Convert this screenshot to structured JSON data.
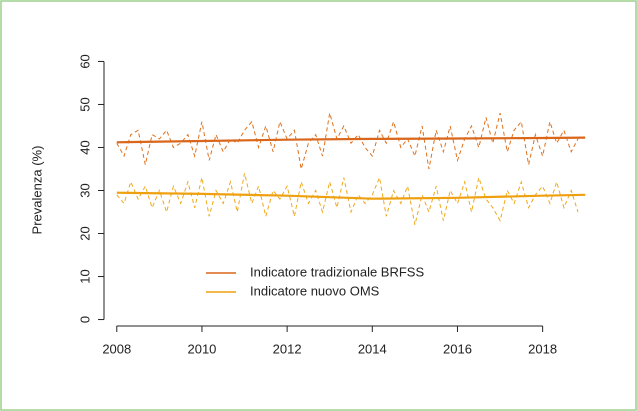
{
  "chart_data": {
    "type": "line",
    "ylabel": "Prevalenza (%)",
    "x": [
      2008,
      2008.17,
      2008.33,
      2008.5,
      2008.67,
      2008.83,
      2009,
      2009.17,
      2009.33,
      2009.5,
      2009.67,
      2009.83,
      2010,
      2010.17,
      2010.33,
      2010.5,
      2010.67,
      2010.83,
      2011,
      2011.17,
      2011.33,
      2011.5,
      2011.67,
      2011.83,
      2012,
      2012.17,
      2012.33,
      2012.5,
      2012.67,
      2012.83,
      2013,
      2013.17,
      2013.33,
      2013.5,
      2013.67,
      2013.83,
      2014,
      2014.17,
      2014.33,
      2014.5,
      2014.67,
      2014.83,
      2015,
      2015.17,
      2015.33,
      2015.5,
      2015.67,
      2015.83,
      2016,
      2016.17,
      2016.33,
      2016.5,
      2016.67,
      2016.83,
      2017,
      2017.17,
      2017.33,
      2017.5,
      2017.67,
      2017.83,
      2018,
      2018.17,
      2018.33,
      2018.5,
      2018.67,
      2018.83
    ],
    "series": [
      {
        "name": "Indicatore tradizionale BRFSS",
        "color": "#e0701b",
        "trend_color": "#d9661a",
        "values": [
          41,
          38,
          43,
          44,
          36,
          43,
          42,
          44,
          40,
          41,
          43,
          38,
          46,
          37,
          43,
          39,
          42,
          41,
          44,
          46,
          40,
          45,
          39,
          46,
          42,
          44,
          35,
          41,
          43,
          38,
          48,
          42,
          45,
          41,
          43,
          40,
          38,
          44,
          41,
          46,
          40,
          42,
          38,
          45,
          35,
          44,
          39,
          45,
          37,
          42,
          45,
          40,
          47,
          41,
          48,
          39,
          44,
          46,
          36,
          43,
          38,
          46,
          41,
          44,
          39,
          42
        ],
        "trend": {
          "x": [
            2008,
            2010,
            2012,
            2014,
            2016,
            2018,
            2019
          ],
          "values": [
            41.2,
            41.5,
            41.8,
            42,
            42.1,
            42.2,
            42.3
          ]
        }
      },
      {
        "name": "Indicatore nuovo OMS",
        "color": "#f0a818",
        "trend_color": "#eea010",
        "values": [
          29,
          27,
          32,
          28,
          31,
          26,
          30,
          25,
          31,
          27,
          32,
          26,
          33,
          24,
          30,
          27,
          32,
          25,
          34,
          27,
          31,
          24,
          30,
          28,
          31,
          24,
          32,
          27,
          30,
          25,
          32,
          26,
          33,
          25,
          29,
          27,
          29,
          33,
          24,
          30,
          27,
          31,
          22,
          29,
          25,
          31,
          23,
          30,
          27,
          32,
          25,
          33,
          28,
          26,
          23,
          30,
          27,
          32,
          26,
          29,
          31,
          27,
          32,
          26,
          30,
          25
        ],
        "trend": {
          "x": [
            2008,
            2010,
            2012,
            2014,
            2016,
            2018,
            2019
          ],
          "values": [
            29.5,
            29.2,
            28.8,
            28.1,
            28.3,
            28.8,
            29
          ]
        }
      }
    ],
    "xlim": [
      2007.7,
      2019.3
    ],
    "xticks": [
      2008,
      2010,
      2012,
      2014,
      2016,
      2018
    ],
    "ylim": [
      -1.5,
      61.5
    ],
    "yticks": [
      0,
      10,
      20,
      30,
      40,
      50,
      60
    ]
  }
}
